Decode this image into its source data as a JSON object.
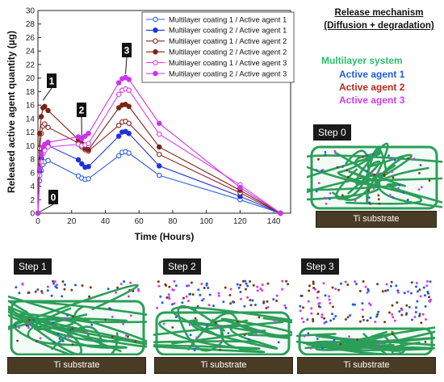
{
  "chart_data": {
    "type": "line",
    "xlabel": "Time (Hours)",
    "ylabel": "Released active agent quantity (µg)",
    "xlim": [
      0,
      150
    ],
    "ylim": [
      0,
      30
    ],
    "xticks": [
      0,
      20,
      40,
      60,
      80,
      100,
      120,
      140
    ],
    "yticks": [
      0,
      2,
      4,
      6,
      8,
      10,
      12,
      14,
      16,
      18,
      20,
      22,
      24,
      26,
      28,
      30
    ],
    "legend_position": "top-right",
    "x": [
      0,
      1,
      2,
      3,
      4,
      6,
      24,
      26,
      28,
      30,
      48,
      50,
      52,
      54,
      72,
      120,
      144
    ],
    "series": [
      {
        "name": "Multilayer coating 1 / Active agent 1",
        "color": "#2f5fe0",
        "filled": false,
        "values": [
          0,
          4.8,
          6.3,
          7.2,
          7.6,
          7.8,
          5.5,
          5.2,
          5.0,
          5.1,
          8.5,
          9.0,
          9.1,
          8.9,
          5.6,
          2.0,
          0
        ]
      },
      {
        "name": "Multilayer coating 2 / Active agent 1",
        "color": "#1f33d8",
        "filled": true,
        "values": [
          0,
          6.2,
          8.1,
          9.2,
          9.8,
          10.0,
          7.9,
          7.3,
          6.8,
          6.9,
          11.4,
          12.0,
          12.1,
          11.8,
          7.0,
          2.5,
          0
        ]
      },
      {
        "name": "Multilayer coating 1 / Active agent 2",
        "color": "#8b2a20",
        "filled": false,
        "values": [
          0,
          9.6,
          11.8,
          12.9,
          13.2,
          12.7,
          10.4,
          9.8,
          9.4,
          9.2,
          13.0,
          13.5,
          13.6,
          13.3,
          8.7,
          3.0,
          0
        ]
      },
      {
        "name": "Multilayer coating 2 / Active agent 2",
        "color": "#7a2418",
        "filled": true,
        "values": [
          0,
          11.8,
          14.3,
          15.6,
          15.8,
          15.2,
          10.9,
          10.3,
          9.6,
          9.4,
          15.6,
          16.0,
          16.1,
          15.8,
          9.8,
          3.4,
          0
        ]
      },
      {
        "name": "Multilayer coating 1 / Active agent 3",
        "color": "#e040e8",
        "filled": false,
        "values": [
          0,
          5.6,
          7.6,
          8.8,
          9.3,
          9.8,
          10.2,
          10.0,
          10.1,
          10.3,
          17.6,
          18.2,
          18.4,
          18.2,
          11.7,
          4.2,
          0
        ]
      },
      {
        "name": "Multilayer coating 2 / Active agent 3",
        "color": "#cc33ee",
        "filled": true,
        "values": [
          0,
          6.6,
          8.7,
          9.8,
          10.2,
          10.5,
          11.3,
          11.0,
          11.4,
          11.8,
          19.3,
          19.9,
          20.1,
          19.8,
          13.3,
          3.8,
          0
        ]
      }
    ],
    "annotations": [
      "0",
      "1",
      "2",
      "3"
    ]
  },
  "mechanism": {
    "title_line1": "Release mechanism",
    "title_line2": "(Diffusion + degradation)",
    "legend": [
      {
        "label": "Multilayer system",
        "color": "#2dbd6e"
      },
      {
        "label": "Active agent 1",
        "color": "#1f5ce0"
      },
      {
        "label": "Active agent 2",
        "color": "#b52a1a"
      },
      {
        "label": "Active agent 3",
        "color": "#d03ef0"
      }
    ]
  },
  "steps": [
    {
      "label": "Step 0",
      "substrate": "Ti substrate"
    },
    {
      "label": "Step 1",
      "substrate": "Ti substrate"
    },
    {
      "label": "Step 2",
      "substrate": "Ti substrate"
    },
    {
      "label": "Step 3",
      "substrate": "Ti substrate"
    }
  ]
}
